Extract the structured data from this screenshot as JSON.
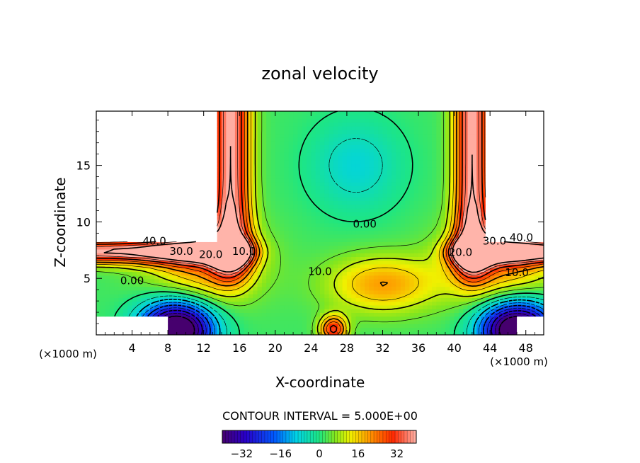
{
  "chart_data": {
    "type": "heatmap",
    "title": "zonal velocity",
    "xlabel": "X-coordinate",
    "ylabel": "Z-coordinate",
    "x_unit_left": "(×1000 m)",
    "x_unit_right": "(×1000 m)",
    "xlim": [
      0,
      50
    ],
    "ylim": [
      0,
      19.8
    ],
    "x_ticks": [
      4,
      8,
      12,
      16,
      20,
      24,
      28,
      32,
      36,
      40,
      44,
      48
    ],
    "y_ticks": [
      5,
      10,
      15
    ],
    "contour_interval_text": "CONTOUR INTERVAL = 5.000E+00",
    "contour_interval": 5,
    "colorbar": {
      "range": [
        -40,
        40
      ],
      "ticks": [
        -32,
        -16,
        0,
        16,
        32
      ],
      "tick_labels": [
        "−32",
        "−16",
        "0",
        "16",
        "32"
      ]
    },
    "contour_labels": [
      {
        "text": "40.0",
        "x": 6.5,
        "z": 8.3
      },
      {
        "text": "30.0",
        "x": 9.5,
        "z": 7.4
      },
      {
        "text": "20.0",
        "x": 12.8,
        "z": 7.1
      },
      {
        "text": "10.0",
        "x": 16.5,
        "z": 7.4
      },
      {
        "text": "0.00",
        "x": 4.0,
        "z": 4.8
      },
      {
        "text": "10.0",
        "x": 25.0,
        "z": 5.6
      },
      {
        "text": "0.00",
        "x": 30.0,
        "z": 9.8
      },
      {
        "text": "20.0",
        "x": 40.7,
        "z": 7.3
      },
      {
        "text": "30.0",
        "x": 44.5,
        "z": 8.3
      },
      {
        "text": "40.0",
        "x": 47.5,
        "z": 8.6
      },
      {
        "text": "10.0",
        "x": 47.0,
        "z": 5.5
      }
    ],
    "masked_regions_note": ""
  }
}
